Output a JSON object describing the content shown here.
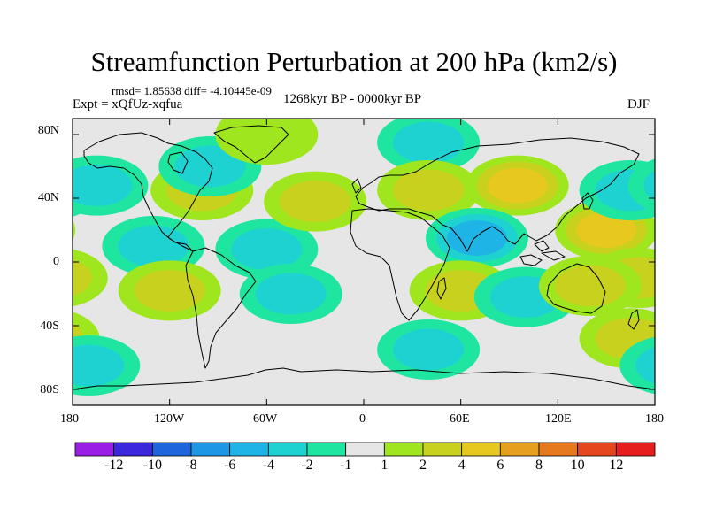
{
  "title": "Streamfunction Perturbation at 200 hPa (km2/s)",
  "stats_line": "rmsd= 1.85638  diff= -4.10445e-09",
  "experiment_label": "Expt = xQfUz-xqfua",
  "period_label": "1268kyr BP - 0000kyr BP",
  "season_label": "DJF",
  "y_axis_ticks": [
    "80N",
    "40N",
    "0",
    "40S",
    "80S"
  ],
  "x_axis_ticks": [
    "180",
    "120W",
    "60W",
    "0",
    "60E",
    "120E",
    "180"
  ],
  "colorbar": {
    "labels": [
      "-12",
      "-10",
      "-8",
      "-6",
      "-4",
      "-2",
      "-1",
      "1",
      "2",
      "4",
      "6",
      "8",
      "10",
      "12"
    ],
    "colors": [
      "#9b1ee6",
      "#3c28dc",
      "#1e64dc",
      "#1e96e6",
      "#1eb4e6",
      "#1ed2d2",
      "#1ee6a0",
      "#e6e6e6",
      "#a0e61e",
      "#c8d21e",
      "#e6c81e",
      "#e6a01e",
      "#e6781e",
      "#e6461e",
      "#e61e1e"
    ]
  },
  "chart_data": {
    "type": "heatmap",
    "projection": "cylindrical-equidistant",
    "lon_range": [
      -180,
      180
    ],
    "lat_range": [
      -90,
      90
    ],
    "levels": [
      -12,
      -10,
      -8,
      -6,
      -4,
      -2,
      -1,
      1,
      2,
      4,
      6,
      8,
      10,
      12
    ],
    "field_features": [
      {
        "lon": 150,
        "lat": 20,
        "value": 5,
        "sign": "positive",
        "region": "north pacific"
      },
      {
        "lon": 170,
        "lat": -10,
        "value": 2,
        "sign": "positive",
        "region": "central pacific"
      },
      {
        "lon": 165,
        "lat": 45,
        "value": -2,
        "sign": "negative",
        "region": "north pacific high lat"
      },
      {
        "lon": -165,
        "lat": 48,
        "value": -2,
        "sign": "negative",
        "region": "aleutian"
      },
      {
        "lon": -130,
        "lat": 10,
        "value": -3,
        "sign": "negative",
        "region": "east pacific"
      },
      {
        "lon": -100,
        "lat": 45,
        "value": 2,
        "sign": "positive",
        "region": "north america"
      },
      {
        "lon": -95,
        "lat": 60,
        "value": -3,
        "sign": "negative",
        "region": "hudson bay"
      },
      {
        "lon": -120,
        "lat": -18,
        "value": 3,
        "sign": "positive",
        "region": "south pacific"
      },
      {
        "lon": -60,
        "lat": 8,
        "value": -3,
        "sign": "negative",
        "region": "tropical atlantic"
      },
      {
        "lon": -45,
        "lat": -20,
        "value": -2,
        "sign": "negative",
        "region": "south atlantic"
      },
      {
        "lon": -30,
        "lat": 38,
        "value": 2,
        "sign": "positive",
        "region": "north atlantic"
      },
      {
        "lon": -60,
        "lat": 80,
        "value": 1.5,
        "sign": "positive",
        "region": "arctic"
      },
      {
        "lon": 40,
        "lat": 75,
        "value": -3,
        "sign": "negative",
        "region": "barents"
      },
      {
        "lon": 40,
        "lat": 45,
        "value": 2,
        "sign": "positive",
        "region": "eurasia"
      },
      {
        "lon": 95,
        "lat": 48,
        "value": 4,
        "sign": "positive",
        "region": "central asia"
      },
      {
        "lon": 70,
        "lat": 15,
        "value": -4,
        "sign": "negative",
        "region": "indian ocean north"
      },
      {
        "lon": 60,
        "lat": -18,
        "value": 2,
        "sign": "positive",
        "region": "southern africa"
      },
      {
        "lon": 100,
        "lat": -22,
        "value": -3,
        "sign": "negative",
        "region": "south indian ocean"
      },
      {
        "lon": 140,
        "lat": -15,
        "value": 2,
        "sign": "positive",
        "region": "australia north"
      },
      {
        "lon": 165,
        "lat": -48,
        "value": 2,
        "sign": "positive",
        "region": "south pacific east of nz"
      },
      {
        "lon": 40,
        "lat": -55,
        "value": -2,
        "sign": "negative",
        "region": "southern ocean"
      },
      {
        "lon": -170,
        "lat": -65,
        "value": -2,
        "sign": "negative",
        "region": "ross sea"
      }
    ]
  }
}
